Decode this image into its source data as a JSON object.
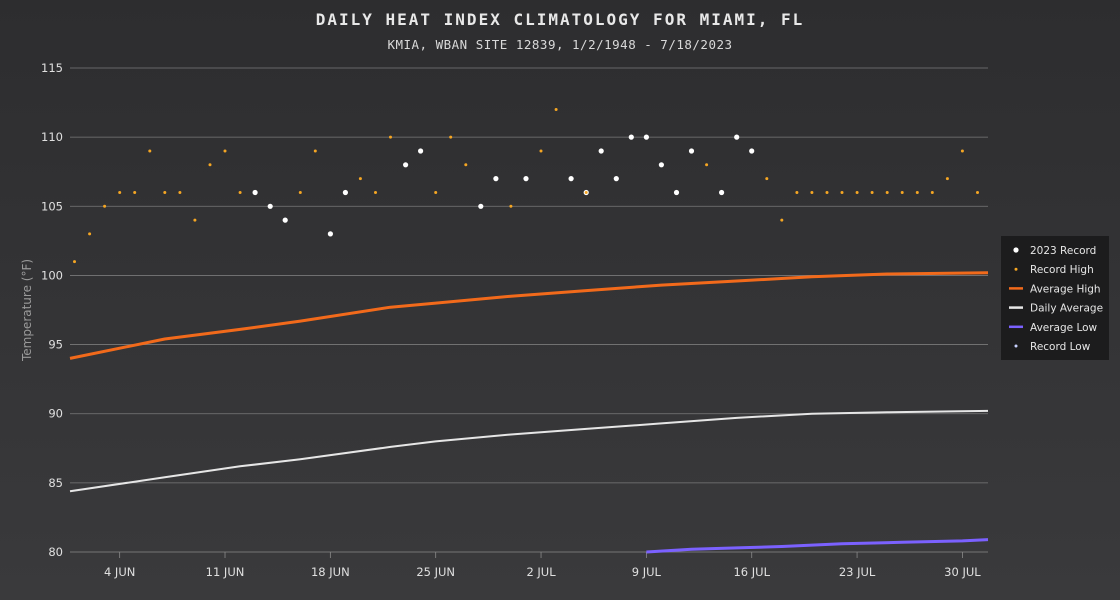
{
  "chart_data": {
    "type": "line",
    "title": "DAILY HEAT INDEX CLIMATOLOGY FOR MIAMI, FL",
    "subtitle": "KMIA, WBAN SITE 12839, 1/2/1948 - 7/18/2023",
    "ylabel": "Temperature (°F)",
    "xlabel": "",
    "ylim": [
      80,
      115
    ],
    "yticks": [
      80,
      85,
      90,
      95,
      100,
      105,
      110,
      115
    ],
    "grid": true,
    "legend_position": "right",
    "x_start_day": 1,
    "x_end_day": 31,
    "xticks": [
      {
        "day": 4,
        "label": "4 JUN"
      },
      {
        "day": 11,
        "label": "11 JUN"
      },
      {
        "day": 18,
        "label": "18 JUN"
      },
      {
        "day": 25,
        "label": "25 JUN"
      },
      {
        "day": 32,
        "label": "2 JUL"
      },
      {
        "day": 39,
        "label": "9 JUL"
      },
      {
        "day": 46,
        "label": "16 JUL"
      },
      {
        "day": 53,
        "label": "23 JUL"
      },
      {
        "day": 60,
        "label": "30 JUL"
      }
    ],
    "series": [
      {
        "name": "2023 Record",
        "kind": "points",
        "color": "#ffffff",
        "points": [
          [
            13,
            106
          ],
          [
            14,
            105
          ],
          [
            15,
            104
          ],
          [
            18,
            103
          ],
          [
            19,
            106
          ],
          [
            23,
            108
          ],
          [
            24,
            109
          ],
          [
            28,
            105
          ],
          [
            29,
            107
          ],
          [
            31,
            107
          ],
          [
            34,
            107
          ],
          [
            35,
            106
          ],
          [
            36,
            109
          ],
          [
            37,
            107
          ],
          [
            38,
            110
          ],
          [
            39,
            110
          ],
          [
            40,
            108
          ],
          [
            41,
            106
          ],
          [
            42,
            109
          ],
          [
            44,
            106
          ],
          [
            45,
            110
          ],
          [
            46,
            109
          ]
        ]
      },
      {
        "name": "Record High",
        "kind": "points",
        "color": "#f5a623",
        "points": [
          [
            1,
            101
          ],
          [
            2,
            103
          ],
          [
            3,
            105
          ],
          [
            4,
            106
          ],
          [
            5,
            106
          ],
          [
            6,
            109
          ],
          [
            7,
            106
          ],
          [
            8,
            106
          ],
          [
            9,
            104
          ],
          [
            10,
            108
          ],
          [
            11,
            109
          ],
          [
            12,
            106
          ],
          [
            16,
            106
          ],
          [
            17,
            109
          ],
          [
            20,
            107
          ],
          [
            21,
            106
          ],
          [
            22,
            110
          ],
          [
            25,
            106
          ],
          [
            26,
            110
          ],
          [
            27,
            108
          ],
          [
            30,
            105
          ],
          [
            32,
            109
          ],
          [
            33,
            112
          ],
          [
            35,
            106
          ],
          [
            43,
            108
          ],
          [
            47,
            107
          ],
          [
            48,
            104
          ],
          [
            49,
            106
          ],
          [
            50,
            106
          ],
          [
            51,
            106
          ],
          [
            52,
            106
          ],
          [
            53,
            106
          ],
          [
            54,
            106
          ],
          [
            55,
            106
          ],
          [
            56,
            106
          ],
          [
            57,
            106
          ],
          [
            58,
            106
          ],
          [
            59,
            107
          ],
          [
            60,
            109
          ],
          [
            61,
            106
          ]
        ]
      },
      {
        "name": "Average High",
        "kind": "line",
        "color": "#f26a1b",
        "x": [
          0.7,
          7,
          12,
          16,
          22,
          25,
          30,
          35,
          40,
          45,
          50,
          55,
          61.7
        ],
        "values": [
          94.0,
          95.4,
          96.1,
          96.7,
          97.7,
          98.0,
          98.5,
          98.9,
          99.3,
          99.6,
          99.9,
          100.1,
          100.2
        ]
      },
      {
        "name": "Daily Average",
        "kind": "line",
        "color": "#e6e6e6",
        "x": [
          0.7,
          7,
          12,
          16,
          22,
          25,
          30,
          35,
          40,
          45,
          50,
          55,
          61.7
        ],
        "values": [
          84.4,
          85.4,
          86.2,
          86.7,
          87.6,
          88.0,
          88.5,
          88.9,
          89.3,
          89.7,
          90.0,
          90.1,
          90.2
        ]
      },
      {
        "name": "Average Low",
        "kind": "line",
        "color": "#7b61ff",
        "x": [
          39,
          42,
          45,
          48,
          52,
          56,
          60,
          61.7
        ],
        "values": [
          80.0,
          80.2,
          80.3,
          80.4,
          80.6,
          80.7,
          80.8,
          80.9
        ]
      },
      {
        "name": "Record Low",
        "kind": "points",
        "color": "#c8d2ff",
        "points": []
      }
    ]
  }
}
